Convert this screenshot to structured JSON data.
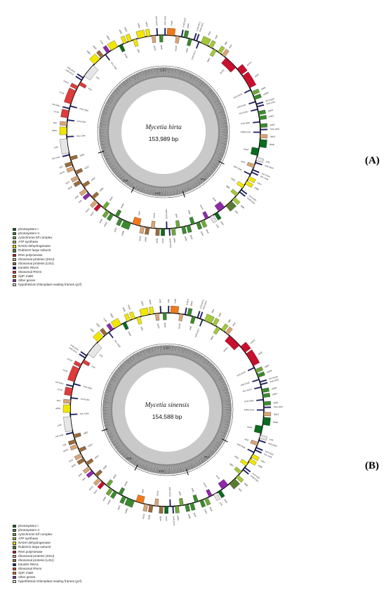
{
  "legend_items": [
    {
      "label": "photosystem I",
      "color": "#0b6b1e"
    },
    {
      "label": "photosystem II",
      "color": "#3c8a2f"
    },
    {
      "label": "cytochrome b/f complex",
      "color": "#6fa83a"
    },
    {
      "label": "ATP synthase",
      "color": "#a3c93a"
    },
    {
      "label": "NADH dehydrogenase",
      "color": "#f2e600"
    },
    {
      "label": "RubisCO large subunit",
      "color": "#5a7a32"
    },
    {
      "label": "RNA polymerase",
      "color": "#c8102e"
    },
    {
      "label": "ribosomal proteins (SSU)",
      "color": "#d9a577"
    },
    {
      "label": "ribosomal proteins (LSU)",
      "color": "#9b6b3c"
    },
    {
      "label": "transfer RNAs",
      "color": "#1c1c7a"
    },
    {
      "label": "ribosomal RNAs",
      "color": "#e03a3a"
    },
    {
      "label": "clpP, matK",
      "color": "#f07a1a"
    },
    {
      "label": "other genes",
      "color": "#8e2aa8"
    },
    {
      "label": "hypothetical chloroplast reading frames (ycf)",
      "color": "#e6e6e6"
    }
  ],
  "maps": [
    {
      "panel": "(A)",
      "species": "Mycetia hirta",
      "length": "153,989 bp",
      "regions": [
        "LSC",
        "IRA",
        "SSC",
        "IRB"
      ],
      "genes": [
        "trnH-GUG",
        "psbA",
        "trnK-UUU",
        "matK",
        "rps16",
        "trnQ-UUG",
        "psbK",
        "psbI",
        "trnS-GCU",
        "trnG-GCC",
        "trnR-UCU",
        "atpA",
        "atpF",
        "atpH",
        "atpI",
        "rps2",
        "rpoC2",
        "rpoC1",
        "rpoB",
        "trnC-GCA",
        "petN",
        "psbM",
        "trnD-GUC",
        "trnY-GUA",
        "trnE-UUC",
        "trnT-GGU",
        "psbD",
        "psbC",
        "trnS-UGA",
        "psbZ",
        "trnG-UCC",
        "trnfM-CAU",
        "rps14",
        "psaB",
        "psaA",
        "ycf3",
        "trnS-GGA",
        "rps4",
        "trnT-UGU",
        "trnL-UAA",
        "trnF-GAA",
        "ndhJ",
        "ndhK",
        "ndhC",
        "trnV-UAC",
        "trnM-CAU",
        "atpE",
        "atpB",
        "rbcL",
        "accD",
        "psaI",
        "ycf4",
        "cemA",
        "petA",
        "psbJ",
        "psbL",
        "psbF",
        "psbE",
        "petL",
        "petG",
        "trnW-CCA",
        "trnP-UGG",
        "psaJ",
        "rpl33",
        "rps18",
        "rpl20",
        "rps12",
        "clpP",
        "psbB",
        "psbT",
        "psbN",
        "psbH",
        "petB",
        "petD",
        "rpoA",
        "rps11",
        "rpl36",
        "infA",
        "rps8",
        "rpl14",
        "rpl16",
        "rps3",
        "rpl22",
        "rps19",
        "rpl2",
        "rpl23",
        "trnI-CAU",
        "ycf2",
        "trnL-CAA",
        "ndhB",
        "rps7",
        "trnV-GAC",
        "rrn16",
        "trnI-GAU",
        "trnA-UGC",
        "rrn23",
        "rrn4.5",
        "rrn5",
        "trnR-ACG",
        "trnN-GUU",
        "ycf1",
        "ndhF",
        "rpl32",
        "trnL-UAG",
        "ccsA",
        "ndhD",
        "psaC",
        "ndhE",
        "ndhG",
        "ndhI",
        "ndhA",
        "ndhH",
        "rps15"
      ]
    },
    {
      "panel": "(B)",
      "species": "Mycetia sinensis",
      "length": "154,588 bp",
      "regions": [
        "LSC",
        "IRA",
        "SSC",
        "IRB"
      ],
      "genes": [
        "trnH-GUG",
        "psbA",
        "trnK-UUU",
        "matK",
        "rps16",
        "trnQ-UUG",
        "psbK",
        "psbI",
        "trnS-GCU",
        "trnG-GCC",
        "trnR-UCU",
        "atpA",
        "atpF",
        "atpH",
        "atpI",
        "rps2",
        "rpoC2",
        "rpoC1",
        "rpoB",
        "trnC-GCA",
        "petN",
        "psbM",
        "trnD-GUC",
        "trnY-GUA",
        "trnE-UUC",
        "trnT-GGU",
        "psbD",
        "psbC",
        "trnS-UGA",
        "psbZ",
        "trnG-UCC",
        "trnfM-CAU",
        "rps14",
        "psaB",
        "psaA",
        "ycf3",
        "trnS-GGA",
        "rps4",
        "trnT-UGU",
        "trnL-UAA",
        "trnF-GAA",
        "ndhJ",
        "ndhK",
        "ndhC",
        "trnV-UAC",
        "trnM-CAU",
        "atpE",
        "atpB",
        "rbcL",
        "accD",
        "psaI",
        "ycf4",
        "cemA",
        "petA",
        "psbJ",
        "psbL",
        "psbF",
        "psbE",
        "petL",
        "petG",
        "trnW-CCA",
        "trnP-UGG",
        "psaJ",
        "rpl33",
        "rps18",
        "rpl20",
        "rps12",
        "clpP",
        "psbB",
        "psbT",
        "psbN",
        "psbH",
        "petB",
        "petD",
        "rpoA",
        "rps11",
        "rpl36",
        "infA",
        "rps8",
        "rpl14",
        "rpl16",
        "rps3",
        "rpl22",
        "rps19",
        "rpl2",
        "rpl23",
        "trnI-CAU",
        "ycf2",
        "trnL-CAA",
        "ndhB",
        "rps7",
        "trnV-GAC",
        "rrn16",
        "trnI-GAU",
        "trnA-UGC",
        "rrn23",
        "rrn4.5",
        "rrn5",
        "trnR-ACG",
        "trnN-GUU",
        "ycf1",
        "ndhF",
        "rpl32",
        "trnL-UAG",
        "ccsA",
        "ndhD",
        "psaC",
        "ndhE",
        "ndhG",
        "ndhI",
        "ndhA",
        "ndhH",
        "rps15"
      ]
    }
  ]
}
